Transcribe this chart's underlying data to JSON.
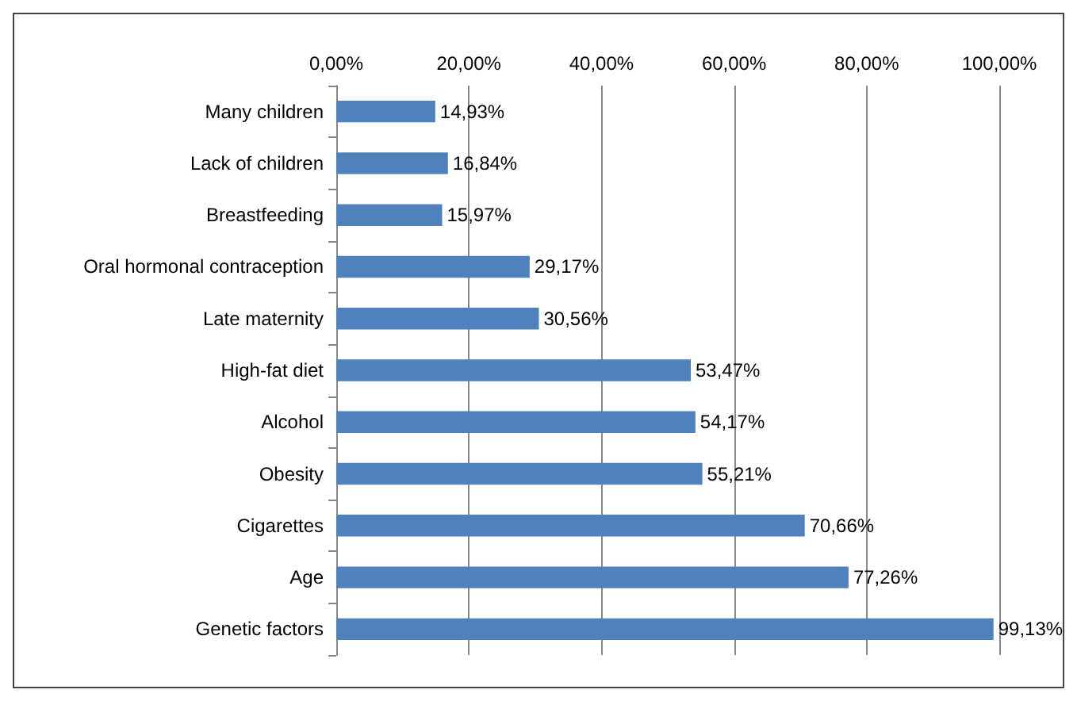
{
  "chart_data": {
    "type": "bar",
    "orientation": "horizontal",
    "categories": [
      "Many children",
      "Lack of children",
      "Breastfeeding",
      "Oral hormonal contraception",
      "Late maternity",
      "High-fat diet",
      "Alcohol",
      "Obesity",
      "Cigarettes",
      "Age",
      "Genetic factors"
    ],
    "values": [
      14.93,
      16.84,
      15.97,
      29.17,
      30.56,
      53.47,
      54.17,
      55.21,
      70.66,
      77.26,
      99.13
    ],
    "value_labels": [
      "14,93%",
      "16,84%",
      "15,97%",
      "29,17%",
      "30,56%",
      "53,47%",
      "54,17%",
      "55,21%",
      "70,66%",
      "77,26%",
      "99,13%"
    ],
    "color": "#4f81bd",
    "xlim": [
      0,
      100
    ],
    "xticks": [
      {
        "value": 0,
        "label": "0,00%"
      },
      {
        "value": 20,
        "label": "20,00%"
      },
      {
        "value": 40,
        "label": "40,00%"
      },
      {
        "value": 60,
        "label": "60,00%"
      },
      {
        "value": 80,
        "label": "80,00%"
      },
      {
        "value": 100,
        "label": "100,00%"
      }
    ],
    "grid": "x"
  }
}
